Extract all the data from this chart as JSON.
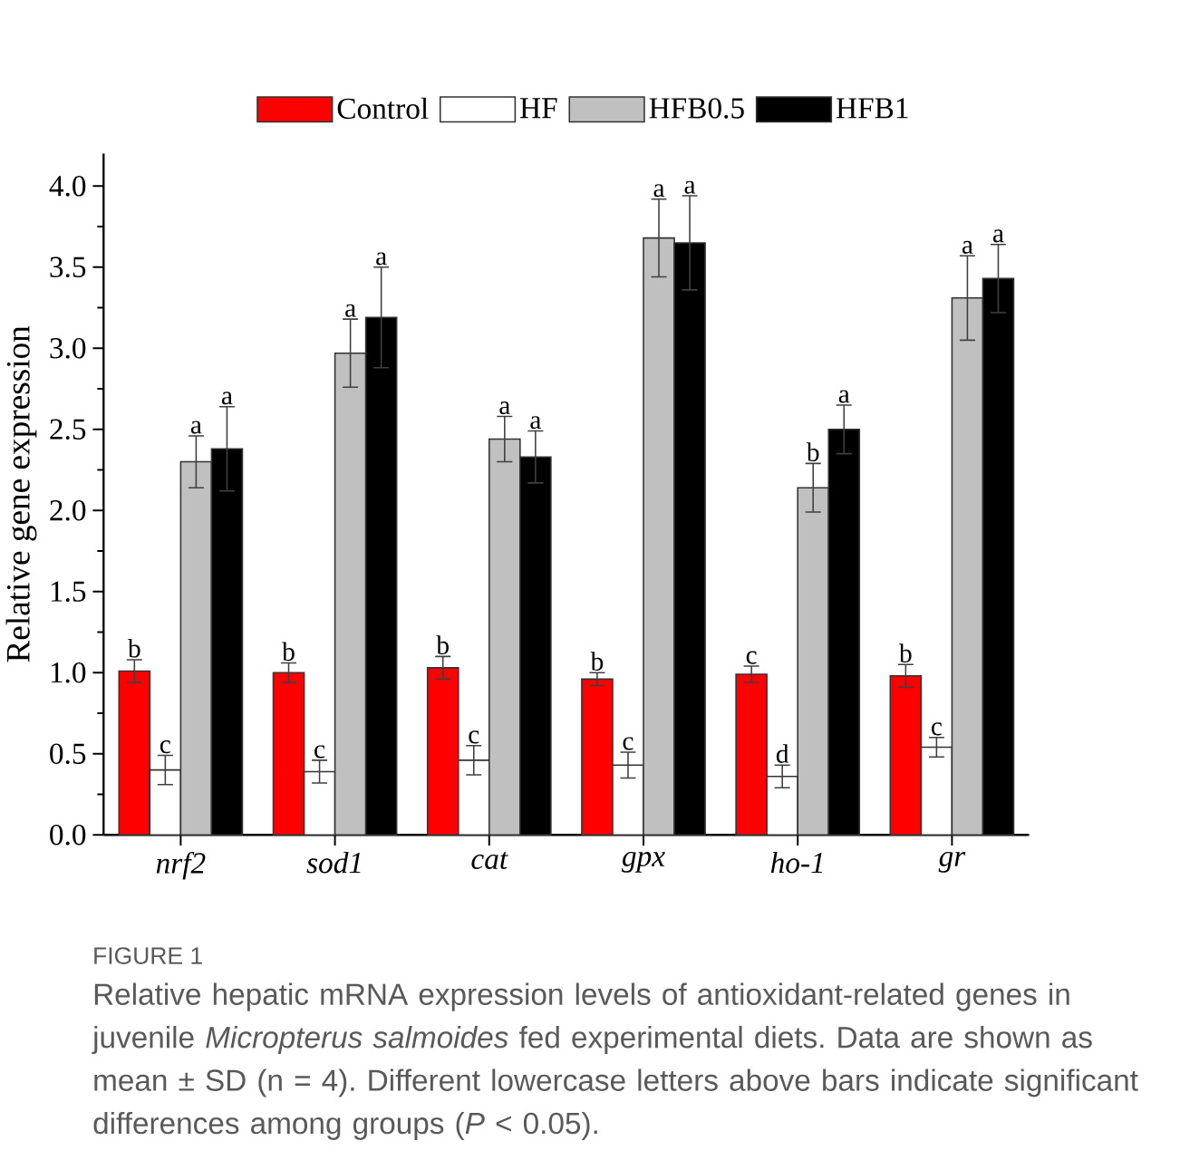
{
  "chart_data": {
    "type": "bar",
    "ylabel": "Relative gene expression",
    "categories": [
      "nrf2",
      "sod1",
      "cat",
      "gpx",
      "ho-1",
      "gr"
    ],
    "series": [
      {
        "name": "Control",
        "color": "#ff0000",
        "values": [
          1.01,
          1.0,
          1.03,
          0.96,
          0.99,
          0.98
        ],
        "errors": [
          0.07,
          0.06,
          0.07,
          0.04,
          0.05,
          0.07
        ],
        "value_labels": [
          "b",
          "b",
          "b",
          "b",
          "c",
          "b"
        ]
      },
      {
        "name": "HF",
        "color": "#ffffff",
        "values": [
          0.4,
          0.39,
          0.46,
          0.43,
          0.36,
          0.54
        ],
        "errors": [
          0.09,
          0.07,
          0.09,
          0.08,
          0.07,
          0.06
        ],
        "value_labels": [
          "c",
          "c",
          "c",
          "c",
          "d",
          "c"
        ]
      },
      {
        "name": "HFB0.5",
        "color": "#c0c0c0",
        "values": [
          2.3,
          2.97,
          2.44,
          3.68,
          2.14,
          3.31
        ],
        "errors": [
          0.16,
          0.21,
          0.14,
          0.24,
          0.15,
          0.26
        ],
        "value_labels": [
          "a",
          "a",
          "a",
          "a",
          "b",
          "a"
        ]
      },
      {
        "name": "HFB1",
        "color": "#000000",
        "values": [
          2.38,
          3.19,
          2.33,
          3.65,
          2.5,
          3.43
        ],
        "errors": [
          0.26,
          0.31,
          0.16,
          0.29,
          0.15,
          0.21
        ],
        "value_labels": [
          "a",
          "a",
          "a",
          "a",
          "a",
          "a"
        ]
      }
    ],
    "ylim": [
      0,
      4.2
    ],
    "yticks": [
      {
        "value": 0,
        "label": "0.0"
      },
      {
        "value": 0.5,
        "label": "0.5"
      },
      {
        "value": 1,
        "label": "1.0"
      },
      {
        "value": 1.5,
        "label": "1.5"
      },
      {
        "value": 2,
        "label": "2.0"
      },
      {
        "value": 2.5,
        "label": "2.5"
      },
      {
        "value": 3,
        "label": "3.0"
      },
      {
        "value": 3.5,
        "label": "3.5"
      },
      {
        "value": 4,
        "label": "4.0"
      }
    ],
    "legend": "top",
    "annotations": [
      "FIGURE 1",
      "Relative hepatic mRNA expression levels of antioxidant-related genes in juvenile *Micropterus salmoides* fed experimental diets. Data are shown as mean ± SD (n = 4). Different lowercase letters above bars indicate significant differences among groups (*P* < 0.05)."
    ]
  }
}
